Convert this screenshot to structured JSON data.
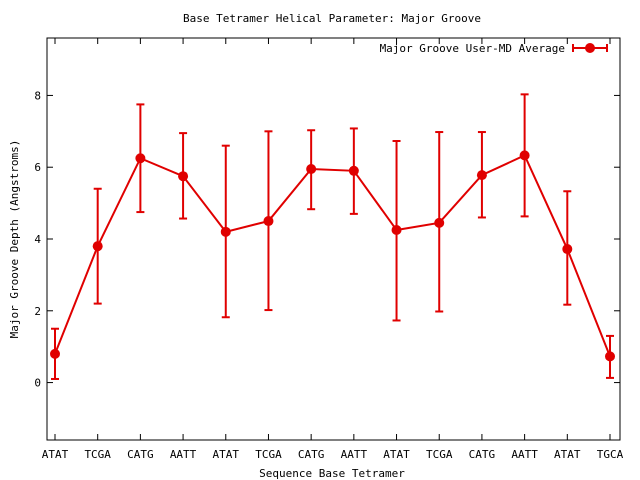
{
  "chart_data": {
    "type": "line",
    "title": "Base Tetramer Helical Parameter: Major Groove",
    "xlabel": "Sequence Base Tetramer",
    "ylabel": "Major Groove Depth (Angstroms)",
    "ylim": [
      -1.6,
      9.6
    ],
    "yticks": [
      0,
      2,
      4,
      6,
      8
    ],
    "grid": false,
    "legend_position": "top-right",
    "categories": [
      "ATAT",
      "TCGA",
      "CATG",
      "AATT",
      "ATAT",
      "TCGA",
      "CATG",
      "AATT",
      "ATAT",
      "TCGA",
      "CATG",
      "AATT",
      "ATAT",
      "TGCA"
    ],
    "series": [
      {
        "name": "Major Groove User-MD Average",
        "color": "#e00000",
        "values": [
          0.8,
          3.8,
          6.25,
          5.75,
          4.2,
          4.5,
          5.95,
          5.9,
          4.25,
          4.45,
          5.78,
          6.33,
          3.72,
          0.73
        ],
        "err_low": [
          0.1,
          2.2,
          4.75,
          4.57,
          1.82,
          2.02,
          4.83,
          4.7,
          1.73,
          1.98,
          4.6,
          4.63,
          2.17,
          0.13
        ],
        "err_high": [
          1.5,
          5.4,
          7.75,
          6.95,
          6.6,
          7.0,
          7.03,
          7.08,
          6.73,
          6.98,
          6.98,
          8.03,
          5.33,
          1.3
        ]
      }
    ]
  }
}
